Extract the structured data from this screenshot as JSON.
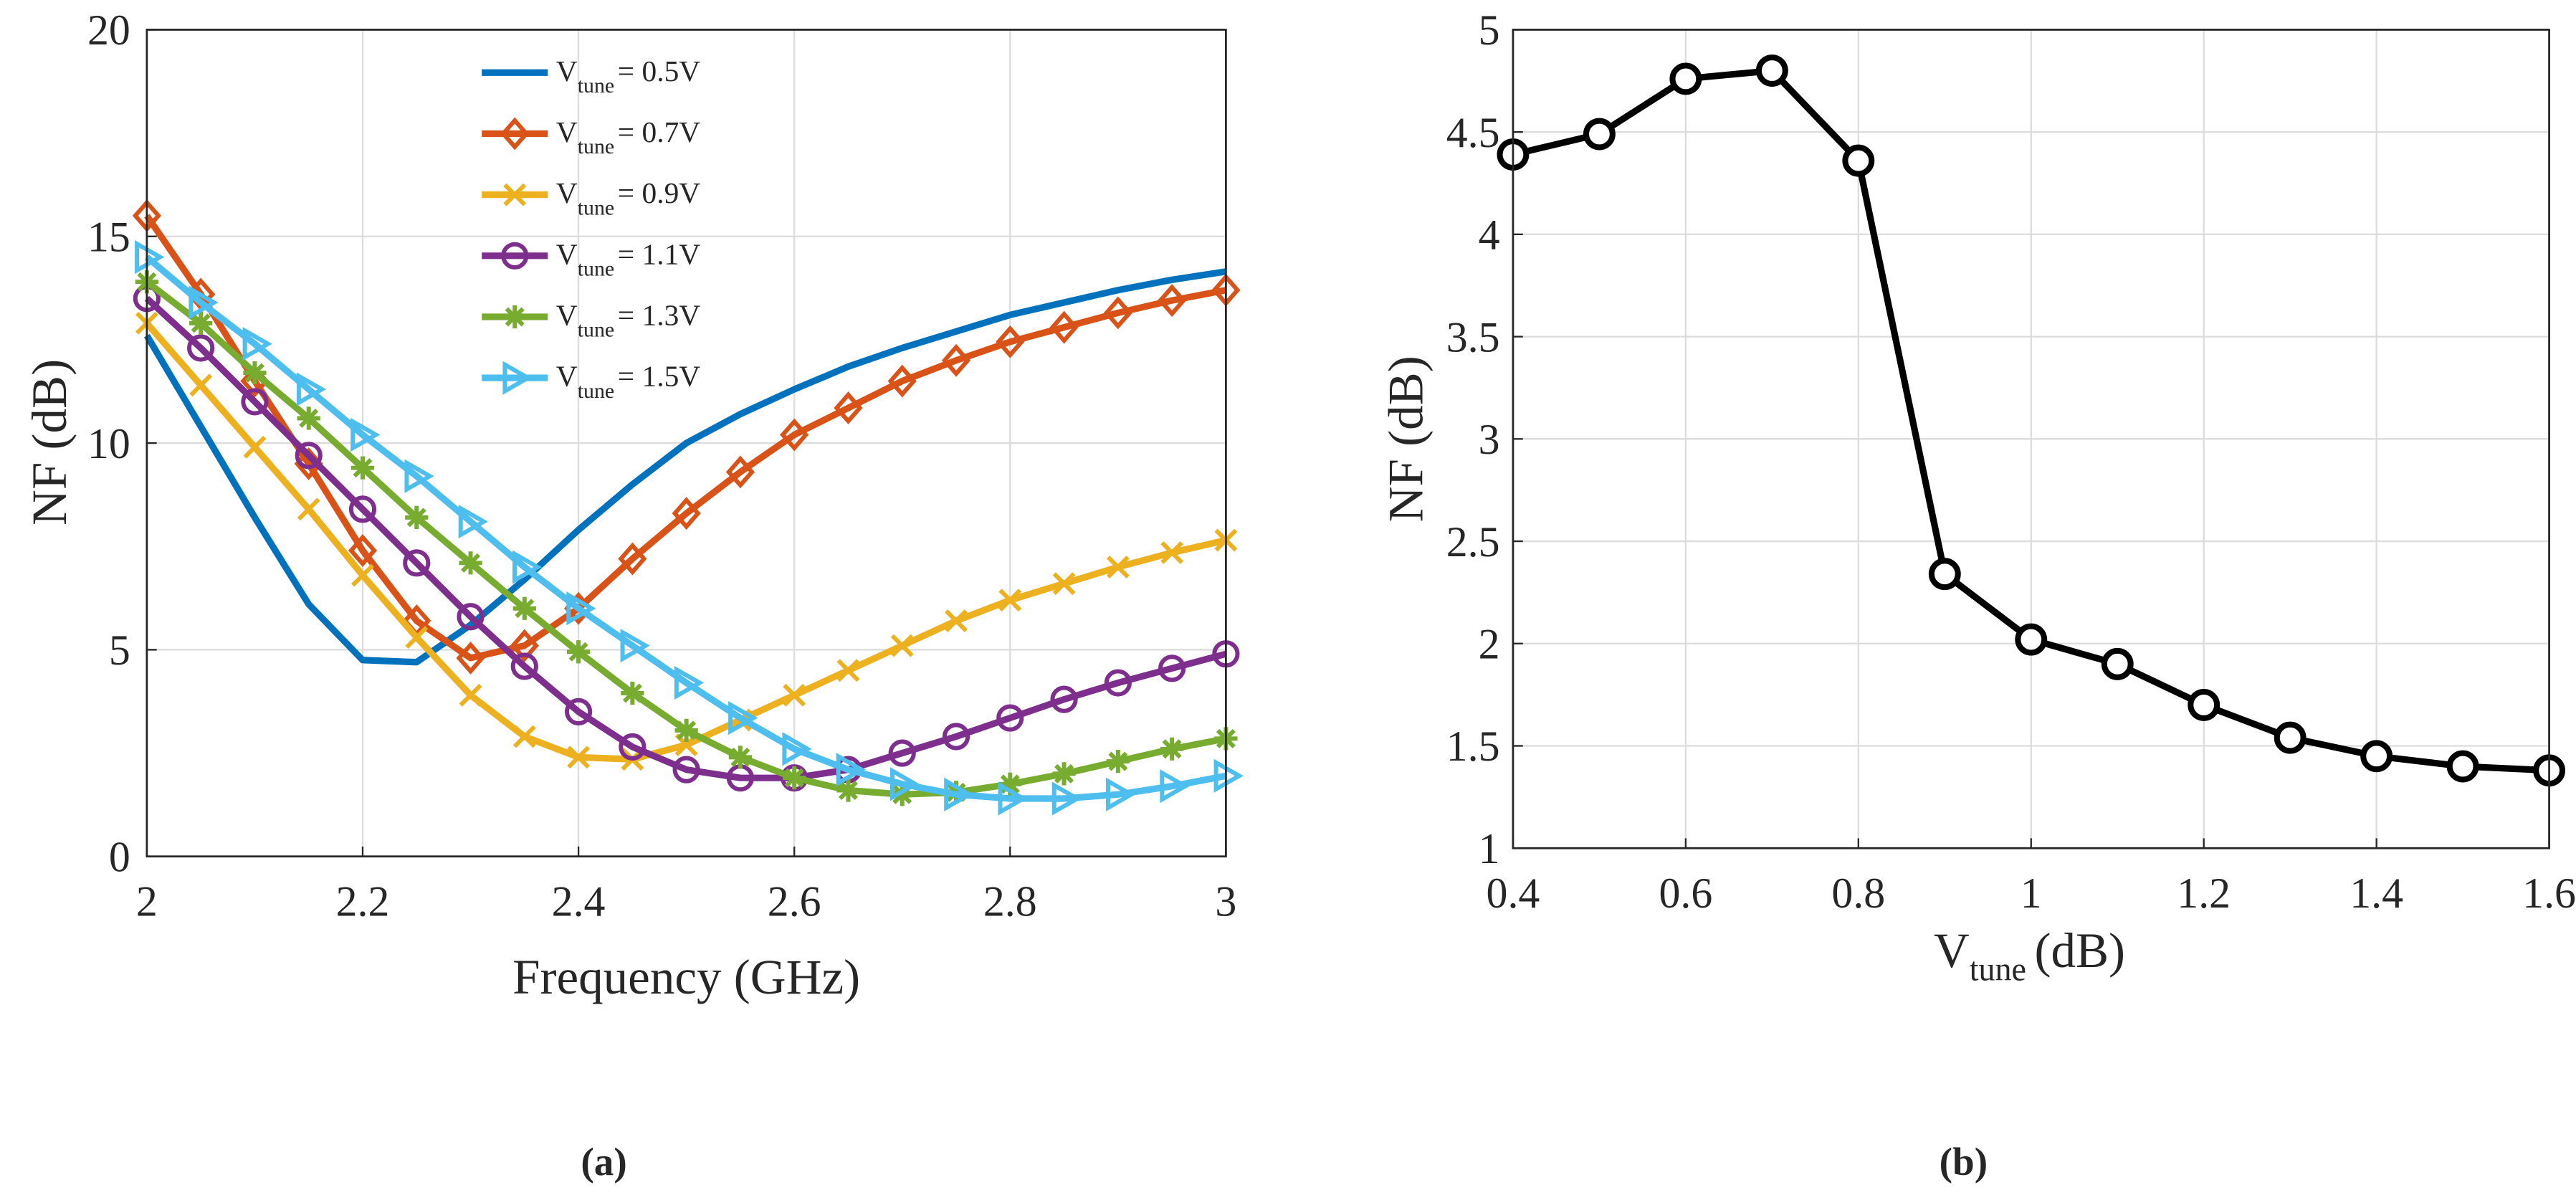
{
  "chart_data": [
    {
      "type": "line",
      "panel_label": "(a)",
      "title": "",
      "xlabel": "Frequency (GHz)",
      "ylabel": "NF (dB)",
      "xlim": [
        2,
        3
      ],
      "ylim": [
        0,
        20
      ],
      "xticks": [
        "2",
        "2.2",
        "2.4",
        "2.6",
        "2.8",
        "3"
      ],
      "yticks": [
        "0",
        "5",
        "10",
        "15",
        "20"
      ],
      "grid": true,
      "legend_position": "top-center",
      "legend_prefix": "V",
      "legend_sub": "tune",
      "x": [
        2,
        2.05,
        2.1,
        2.15,
        2.2,
        2.25,
        2.3,
        2.35,
        2.4,
        2.45,
        2.5,
        2.55,
        2.6,
        2.65,
        2.7,
        2.75,
        2.8,
        2.85,
        2.9,
        2.95,
        3
      ],
      "series": [
        {
          "name": "= 0.5V",
          "color": "#0072BD",
          "marker": "none",
          "values": [
            12.6,
            10.4,
            8.2,
            6.1,
            4.75,
            4.7,
            5.6,
            6.7,
            7.9,
            9.0,
            10.0,
            10.7,
            11.3,
            11.85,
            12.3,
            12.7,
            13.1,
            13.4,
            13.7,
            13.95,
            14.15
          ]
        },
        {
          "name": "= 0.7V",
          "color": "#D95319",
          "marker": "diamond",
          "values": [
            15.5,
            13.6,
            11.5,
            9.5,
            7.4,
            5.7,
            4.8,
            5.1,
            6.0,
            7.2,
            8.3,
            9.3,
            10.2,
            10.85,
            11.5,
            12.0,
            12.45,
            12.8,
            13.15,
            13.45,
            13.7
          ]
        },
        {
          "name": "= 0.9V",
          "color": "#EDB120",
          "marker": "x",
          "values": [
            12.9,
            11.4,
            9.9,
            8.4,
            6.8,
            5.3,
            3.9,
            2.9,
            2.4,
            2.35,
            2.7,
            3.3,
            3.9,
            4.5,
            5.1,
            5.7,
            6.2,
            6.6,
            7.0,
            7.35,
            7.65
          ]
        },
        {
          "name": "= 1.1V",
          "color": "#7E2F8E",
          "marker": "circle",
          "values": [
            13.5,
            12.3,
            11.0,
            9.7,
            8.4,
            7.1,
            5.8,
            4.6,
            3.5,
            2.65,
            2.1,
            1.9,
            1.9,
            2.1,
            2.5,
            2.9,
            3.35,
            3.8,
            4.2,
            4.55,
            4.9
          ]
        },
        {
          "name": "= 1.3V",
          "color": "#77AC30",
          "marker": "star",
          "values": [
            13.9,
            12.9,
            11.7,
            10.6,
            9.4,
            8.2,
            7.1,
            6.0,
            4.95,
            3.95,
            3.05,
            2.4,
            1.9,
            1.6,
            1.5,
            1.55,
            1.75,
            2.0,
            2.3,
            2.6,
            2.85
          ]
        },
        {
          "name": "= 1.5V",
          "color": "#4DBEEE",
          "marker": "triangle-right",
          "values": [
            14.5,
            13.4,
            12.4,
            11.3,
            10.2,
            9.2,
            8.1,
            7.0,
            6.0,
            5.1,
            4.2,
            3.35,
            2.6,
            2.1,
            1.75,
            1.5,
            1.4,
            1.4,
            1.5,
            1.7,
            1.95
          ]
        }
      ]
    },
    {
      "type": "line",
      "panel_label": "(b)",
      "title": "",
      "xlabel_main": "V",
      "xlabel_sub": "tune",
      "xlabel_unit": "(dB)",
      "ylabel": "NF (dB)",
      "xlim": [
        0.4,
        1.6
      ],
      "ylim": [
        1,
        5
      ],
      "xticks": [
        "0.4",
        "0.6",
        "0.8",
        "1",
        "1.2",
        "1.4",
        "1.6"
      ],
      "yticks": [
        "1",
        "1.5",
        "2",
        "2.5",
        "3",
        "3.5",
        "4",
        "4.5",
        "5"
      ],
      "grid": true,
      "series": [
        {
          "name": "NF",
          "color": "#000000",
          "marker": "circle",
          "x": [
            0.4,
            0.5,
            0.6,
            0.7,
            0.8,
            0.9,
            1.0,
            1.1,
            1.2,
            1.3,
            1.4,
            1.5,
            1.6
          ],
          "values": [
            4.39,
            4.49,
            4.76,
            4.8,
            4.36,
            2.34,
            2.02,
            1.9,
            1.7,
            1.54,
            1.45,
            1.4,
            1.38
          ]
        }
      ]
    }
  ]
}
